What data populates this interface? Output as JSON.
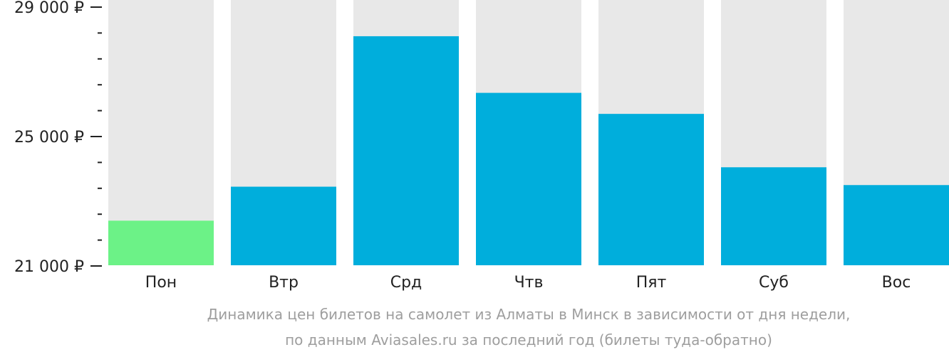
{
  "chart_data": {
    "type": "bar",
    "categories": [
      "Пон",
      "Втр",
      "Срд",
      "Чтв",
      "Пят",
      "Суб",
      "Вос"
    ],
    "values": [
      22400,
      23450,
      28100,
      26350,
      25700,
      24050,
      23500
    ],
    "highlight_index": 0,
    "ylim": [
      21000,
      29000
    ],
    "yticks": [
      {
        "value": 21000,
        "label": "21 000 ₽"
      },
      {
        "value": 25000,
        "label": "25 000 ₽"
      },
      {
        "value": 29000,
        "label": "29 000 ₽"
      }
    ],
    "minor_tick_step": 800,
    "grid": false,
    "colors": {
      "bar": "#00aedc",
      "highlight": "#6cf287",
      "background_bar": "#e8e8e8",
      "axis_text": "#222222",
      "caption": "#9e9e9e"
    }
  },
  "caption": {
    "line1": "Динамика цен билетов на самолет из Алматы в Минск в зависимости от дня недели,",
    "line2": "по данным Aviasales.ru за последний год (билеты туда-обратно)"
  }
}
